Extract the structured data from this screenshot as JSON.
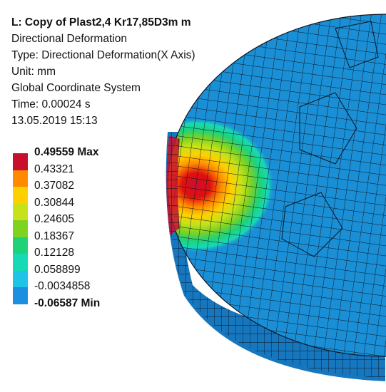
{
  "header": {
    "title": "L: Copy of Plast2,4 Kr17,85D3m m",
    "result_name": "Directional Deformation",
    "type": "Type: Directional Deformation(X Axis)",
    "unit": "Unit: mm",
    "coordinate_system": "Global Coordinate System",
    "time": "Time: 0.00024 s",
    "timestamp": "13.05.2019 15:13"
  },
  "legend": {
    "items": [
      {
        "label": "0.49559 Max",
        "color": "#c8102e",
        "bold": true
      },
      {
        "label": "0.43321",
        "color": "#ff8a00",
        "bold": false
      },
      {
        "label": "0.37082",
        "color": "#ffd000",
        "bold": false
      },
      {
        "label": "0.30844",
        "color": "#c7e21a",
        "bold": false
      },
      {
        "label": "0.24605",
        "color": "#7ed321",
        "bold": false
      },
      {
        "label": "0.18367",
        "color": "#1fd27a",
        "bold": false
      },
      {
        "label": "0.12128",
        "color": "#17d9b6",
        "bold": false
      },
      {
        "label": "0.058899",
        "color": "#1fc3e6",
        "bold": false
      },
      {
        "label": "-0.0034858",
        "color": "#1b8fe0",
        "bold": false
      },
      {
        "label": "-0.06587 Min",
        "color": "#0000ff",
        "bold": true
      }
    ]
  },
  "model": {
    "body_color": "#1a8fd6",
    "side_color": "#1677bf",
    "mesh_color": "#0b1420"
  }
}
